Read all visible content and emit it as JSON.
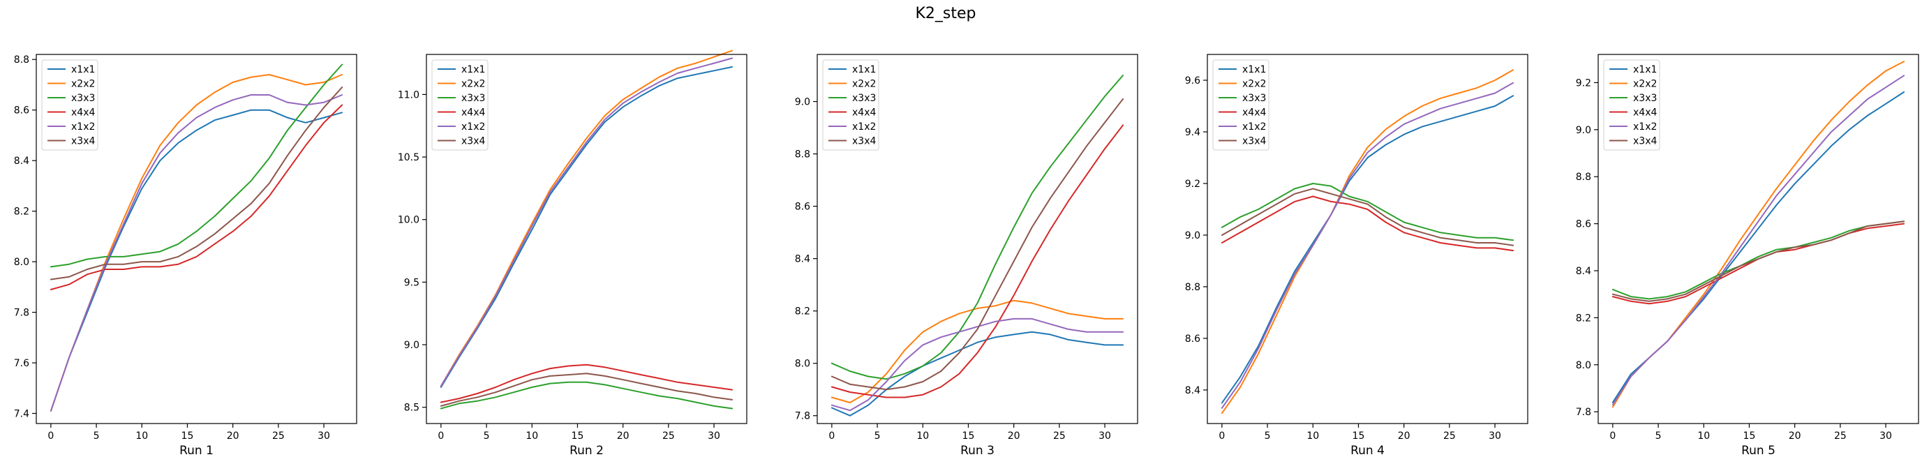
{
  "figure": {
    "suptitle": "K2_step"
  },
  "colors": {
    "x1x1": "#1f77b4",
    "x2x2": "#ff7f0e",
    "x3x3": "#2ca02c",
    "x4x4": "#d62728",
    "x1x2": "#9467bd",
    "x3x4": "#8c564b"
  },
  "chart_data": [
    {
      "type": "line",
      "xlabel": "Run 1",
      "ylabel": "",
      "xlim": [
        -1.6,
        33.6
      ],
      "ylim": [
        7.36,
        8.82
      ],
      "xticks": [
        0,
        5,
        10,
        15,
        20,
        25,
        30
      ],
      "yticks": [
        7.4,
        7.6,
        7.8,
        8.0,
        8.2,
        8.4,
        8.6,
        8.8
      ],
      "ytick_labels": [
        "7.4",
        "7.6",
        "7.8",
        "8.0",
        "8.2",
        "8.4",
        "8.6",
        "8.8"
      ],
      "legend": "upper left",
      "x": [
        0,
        2,
        4,
        6,
        8,
        10,
        12,
        14,
        16,
        18,
        20,
        22,
        24,
        26,
        28,
        30,
        32
      ],
      "series": [
        {
          "name": "x1x1",
          "values": [
            7.41,
            7.62,
            7.8,
            7.98,
            8.14,
            8.29,
            8.4,
            8.47,
            8.52,
            8.56,
            8.58,
            8.6,
            8.6,
            8.57,
            8.55,
            8.57,
            8.59
          ]
        },
        {
          "name": "x2x2",
          "values": [
            7.41,
            7.62,
            7.81,
            8.0,
            8.17,
            8.33,
            8.46,
            8.55,
            8.62,
            8.67,
            8.71,
            8.73,
            8.74,
            8.72,
            8.7,
            8.71,
            8.74
          ]
        },
        {
          "name": "x3x3",
          "values": [
            7.98,
            7.99,
            8.01,
            8.02,
            8.02,
            8.03,
            8.04,
            8.07,
            8.12,
            8.18,
            8.25,
            8.32,
            8.41,
            8.52,
            8.61,
            8.7,
            8.78
          ]
        },
        {
          "name": "x4x4",
          "values": [
            7.89,
            7.91,
            7.95,
            7.97,
            7.97,
            7.98,
            7.98,
            7.99,
            8.02,
            8.07,
            8.12,
            8.18,
            8.26,
            8.36,
            8.46,
            8.55,
            8.62
          ]
        },
        {
          "name": "x1x2",
          "values": [
            7.41,
            7.62,
            7.81,
            7.99,
            8.15,
            8.31,
            8.43,
            8.51,
            8.57,
            8.61,
            8.64,
            8.66,
            8.66,
            8.63,
            8.62,
            8.63,
            8.66
          ]
        },
        {
          "name": "x3x4",
          "values": [
            7.93,
            7.94,
            7.97,
            7.99,
            7.99,
            8.0,
            8.0,
            8.02,
            8.06,
            8.11,
            8.17,
            8.23,
            8.31,
            8.42,
            8.52,
            8.61,
            8.69
          ]
        }
      ]
    },
    {
      "type": "line",
      "xlabel": "Run 2",
      "ylabel": "",
      "xlim": [
        -1.6,
        33.6
      ],
      "ylim": [
        8.37,
        11.32
      ],
      "xticks": [
        0,
        5,
        10,
        15,
        20,
        25,
        30
      ],
      "yticks": [
        8.5,
        9.0,
        9.5,
        10.0,
        10.5,
        11.0
      ],
      "ytick_labels": [
        "8.5",
        "9.0",
        "9.5",
        "10.0",
        "10.5",
        "11.0"
      ],
      "legend": "upper left",
      "x": [
        0,
        2,
        4,
        6,
        8,
        10,
        12,
        14,
        16,
        18,
        20,
        22,
        24,
        26,
        28,
        30,
        32
      ],
      "series": [
        {
          "name": "x1x1",
          "values": [
            8.66,
            8.9,
            9.13,
            9.37,
            9.65,
            9.92,
            10.2,
            10.4,
            10.6,
            10.78,
            10.9,
            10.99,
            11.07,
            11.13,
            11.16,
            11.19,
            11.22
          ]
        },
        {
          "name": "x2x2",
          "values": [
            8.67,
            8.92,
            9.15,
            9.4,
            9.69,
            9.97,
            10.24,
            10.45,
            10.65,
            10.83,
            10.96,
            11.05,
            11.14,
            11.21,
            11.25,
            11.3,
            11.35
          ]
        },
        {
          "name": "x3x3",
          "values": [
            8.49,
            8.53,
            8.55,
            8.58,
            8.62,
            8.66,
            8.69,
            8.7,
            8.7,
            8.68,
            8.65,
            8.62,
            8.59,
            8.57,
            8.54,
            8.51,
            8.49
          ]
        },
        {
          "name": "x4x4",
          "values": [
            8.54,
            8.57,
            8.61,
            8.66,
            8.72,
            8.77,
            8.81,
            8.83,
            8.84,
            8.82,
            8.79,
            8.76,
            8.73,
            8.7,
            8.68,
            8.66,
            8.64
          ]
        },
        {
          "name": "x1x2",
          "values": [
            8.67,
            8.91,
            9.14,
            9.39,
            9.67,
            9.95,
            10.22,
            10.42,
            10.62,
            10.8,
            10.93,
            11.02,
            11.1,
            11.17,
            11.21,
            11.25,
            11.29
          ]
        },
        {
          "name": "x3x4",
          "values": [
            8.51,
            8.55,
            8.58,
            8.62,
            8.67,
            8.72,
            8.75,
            8.76,
            8.77,
            8.75,
            8.72,
            8.69,
            8.66,
            8.63,
            8.61,
            8.58,
            8.56
          ]
        }
      ]
    },
    {
      "type": "line",
      "xlabel": "Run 3",
      "ylabel": "",
      "xlim": [
        -1.6,
        33.6
      ],
      "ylim": [
        7.77,
        9.18
      ],
      "xticks": [
        0,
        5,
        10,
        15,
        20,
        25,
        30
      ],
      "yticks": [
        7.8,
        8.0,
        8.2,
        8.4,
        8.6,
        8.8,
        9.0
      ],
      "ytick_labels": [
        "7.8",
        "8.0",
        "8.2",
        "8.4",
        "8.6",
        "8.8",
        "9.0"
      ],
      "legend": "upper left",
      "x": [
        0,
        2,
        4,
        6,
        8,
        10,
        12,
        14,
        16,
        18,
        20,
        22,
        24,
        26,
        28,
        30,
        32
      ],
      "series": [
        {
          "name": "x1x1",
          "values": [
            7.83,
            7.8,
            7.84,
            7.9,
            7.95,
            7.99,
            8.02,
            8.05,
            8.08,
            8.1,
            8.11,
            8.12,
            8.11,
            8.09,
            8.08,
            8.07,
            8.07
          ]
        },
        {
          "name": "x2x2",
          "values": [
            7.87,
            7.85,
            7.89,
            7.96,
            8.05,
            8.12,
            8.16,
            8.19,
            8.21,
            8.22,
            8.24,
            8.23,
            8.21,
            8.19,
            8.18,
            8.17,
            8.17
          ]
        },
        {
          "name": "x3x3",
          "values": [
            8.0,
            7.97,
            7.95,
            7.94,
            7.96,
            7.99,
            8.04,
            8.12,
            8.23,
            8.38,
            8.52,
            8.65,
            8.75,
            8.84,
            8.93,
            9.02,
            9.1
          ]
        },
        {
          "name": "x4x4",
          "values": [
            7.91,
            7.89,
            7.88,
            7.87,
            7.87,
            7.88,
            7.91,
            7.96,
            8.04,
            8.14,
            8.26,
            8.39,
            8.51,
            8.62,
            8.72,
            8.82,
            8.91
          ]
        },
        {
          "name": "x1x2",
          "values": [
            7.84,
            7.82,
            7.86,
            7.93,
            8.01,
            8.07,
            8.1,
            8.12,
            8.14,
            8.16,
            8.17,
            8.17,
            8.15,
            8.13,
            8.12,
            8.12,
            8.12
          ]
        },
        {
          "name": "x3x4",
          "values": [
            7.95,
            7.92,
            7.91,
            7.9,
            7.91,
            7.93,
            7.97,
            8.04,
            8.13,
            8.26,
            8.39,
            8.52,
            8.63,
            8.73,
            8.83,
            8.92,
            9.01
          ]
        }
      ]
    },
    {
      "type": "line",
      "xlabel": "Run 4",
      "ylabel": "",
      "xlim": [
        -1.6,
        33.6
      ],
      "ylim": [
        8.27,
        9.7
      ],
      "xticks": [
        0,
        5,
        10,
        15,
        20,
        25,
        30
      ],
      "yticks": [
        8.4,
        8.6,
        8.8,
        9.0,
        9.2,
        9.4,
        9.6
      ],
      "ytick_labels": [
        "8.4",
        "8.6",
        "8.8",
        "9.0",
        "9.2",
        "9.4",
        "9.6"
      ],
      "legend": "upper left",
      "x": [
        0,
        2,
        4,
        6,
        8,
        10,
        12,
        14,
        16,
        18,
        20,
        22,
        24,
        26,
        28,
        30,
        32
      ],
      "series": [
        {
          "name": "x1x1",
          "values": [
            8.35,
            8.45,
            8.57,
            8.72,
            8.86,
            8.97,
            9.08,
            9.21,
            9.3,
            9.35,
            9.39,
            9.42,
            9.44,
            9.46,
            9.48,
            9.5,
            9.54
          ]
        },
        {
          "name": "x2x2",
          "values": [
            8.31,
            8.41,
            8.54,
            8.69,
            8.84,
            8.96,
            9.08,
            9.23,
            9.34,
            9.41,
            9.46,
            9.5,
            9.53,
            9.55,
            9.57,
            9.6,
            9.64
          ]
        },
        {
          "name": "x3x3",
          "values": [
            9.03,
            9.07,
            9.1,
            9.14,
            9.18,
            9.2,
            9.19,
            9.15,
            9.13,
            9.09,
            9.05,
            9.03,
            9.01,
            9.0,
            8.99,
            8.99,
            8.98
          ]
        },
        {
          "name": "x4x4",
          "values": [
            8.97,
            9.01,
            9.05,
            9.09,
            9.13,
            9.15,
            9.13,
            9.12,
            9.1,
            9.05,
            9.01,
            8.99,
            8.97,
            8.96,
            8.95,
            8.95,
            8.94
          ]
        },
        {
          "name": "x1x2",
          "values": [
            8.33,
            8.43,
            8.56,
            8.71,
            8.85,
            8.96,
            9.08,
            9.22,
            9.32,
            9.38,
            9.43,
            9.46,
            9.49,
            9.51,
            9.53,
            9.55,
            9.59
          ]
        },
        {
          "name": "x3x4",
          "values": [
            9.0,
            9.04,
            9.08,
            9.12,
            9.16,
            9.18,
            9.16,
            9.14,
            9.12,
            9.07,
            9.03,
            9.01,
            8.99,
            8.98,
            8.97,
            8.97,
            8.96
          ]
        }
      ]
    },
    {
      "type": "line",
      "xlabel": "Run 5",
      "ylabel": "",
      "xlim": [
        -1.6,
        33.6
      ],
      "ylim": [
        7.75,
        9.32
      ],
      "xticks": [
        0,
        5,
        10,
        15,
        20,
        25,
        30
      ],
      "yticks": [
        7.8,
        8.0,
        8.2,
        8.4,
        8.6,
        8.8,
        9.0,
        9.2
      ],
      "ytick_labels": [
        "7.8",
        "8.0",
        "8.2",
        "8.4",
        "8.6",
        "8.8",
        "9.0",
        "9.2"
      ],
      "legend": "upper left",
      "x": [
        0,
        2,
        4,
        6,
        8,
        10,
        12,
        14,
        16,
        18,
        20,
        22,
        24,
        26,
        28,
        30,
        32
      ],
      "series": [
        {
          "name": "x1x1",
          "values": [
            7.84,
            7.96,
            8.03,
            8.1,
            8.19,
            8.28,
            8.38,
            8.48,
            8.58,
            8.68,
            8.77,
            8.85,
            8.93,
            9.0,
            9.06,
            9.11,
            9.16
          ]
        },
        {
          "name": "x2x2",
          "values": [
            7.82,
            7.95,
            8.03,
            8.1,
            8.2,
            8.3,
            8.41,
            8.53,
            8.64,
            8.75,
            8.85,
            8.95,
            9.04,
            9.12,
            9.19,
            9.25,
            9.29
          ]
        },
        {
          "name": "x3x3",
          "values": [
            8.32,
            8.29,
            8.28,
            8.29,
            8.31,
            8.35,
            8.39,
            8.42,
            8.46,
            8.49,
            8.5,
            8.52,
            8.54,
            8.57,
            8.59,
            8.6,
            8.61
          ]
        },
        {
          "name": "x4x4",
          "values": [
            8.29,
            8.27,
            8.26,
            8.27,
            8.29,
            8.33,
            8.37,
            8.41,
            8.45,
            8.48,
            8.49,
            8.51,
            8.53,
            8.56,
            8.58,
            8.59,
            8.6
          ]
        },
        {
          "name": "x1x2",
          "values": [
            7.83,
            7.95,
            8.03,
            8.1,
            8.19,
            8.29,
            8.39,
            8.5,
            8.61,
            8.72,
            8.81,
            8.9,
            8.99,
            9.06,
            9.13,
            9.18,
            9.23
          ]
        },
        {
          "name": "x3x4",
          "values": [
            8.3,
            8.28,
            8.27,
            8.28,
            8.3,
            8.34,
            8.38,
            8.42,
            8.45,
            8.48,
            8.5,
            8.51,
            8.53,
            8.56,
            8.59,
            8.6,
            8.61
          ]
        }
      ]
    }
  ]
}
